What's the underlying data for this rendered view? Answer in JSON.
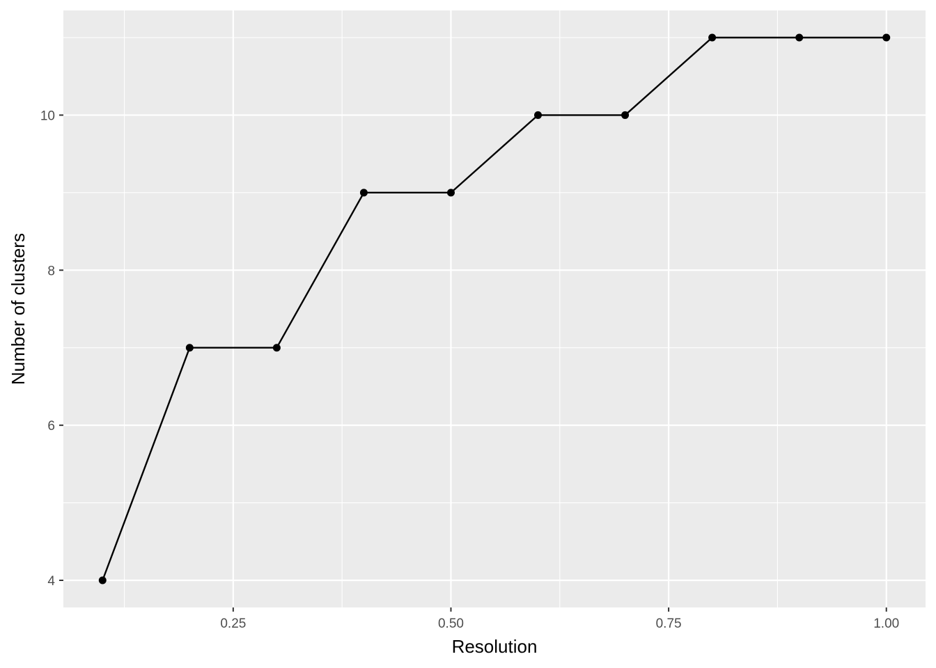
{
  "chart_data": {
    "type": "line",
    "title": "",
    "xlabel": "Resolution",
    "ylabel": "Number of clusters",
    "xlim": [
      0.055,
      1.045
    ],
    "ylim": [
      3.65,
      11.35
    ],
    "x_ticks": [
      0.25,
      0.5,
      0.75,
      1.0
    ],
    "x_tick_labels": [
      "0.25",
      "0.50",
      "0.75",
      "1.00"
    ],
    "x_minor_ticks": [
      0.125,
      0.375,
      0.625,
      0.875
    ],
    "y_ticks": [
      4,
      6,
      8,
      10
    ],
    "y_tick_labels": [
      "4",
      "6",
      "8",
      "10"
    ],
    "y_minor_ticks": [
      5,
      7,
      9,
      11
    ],
    "grid": true,
    "legend": "none",
    "colors": {
      "panel_background": "#ebebeb",
      "grid_line": "#ffffff",
      "series": "#000000",
      "tick_mark": "#333333"
    },
    "series": [
      {
        "x": [
          0.1,
          0.2,
          0.3,
          0.4,
          0.5,
          0.6,
          0.7,
          0.8,
          0.9,
          1.0
        ],
        "y": [
          4,
          7,
          7,
          9,
          9,
          10,
          10,
          11,
          11,
          11
        ]
      }
    ]
  }
}
